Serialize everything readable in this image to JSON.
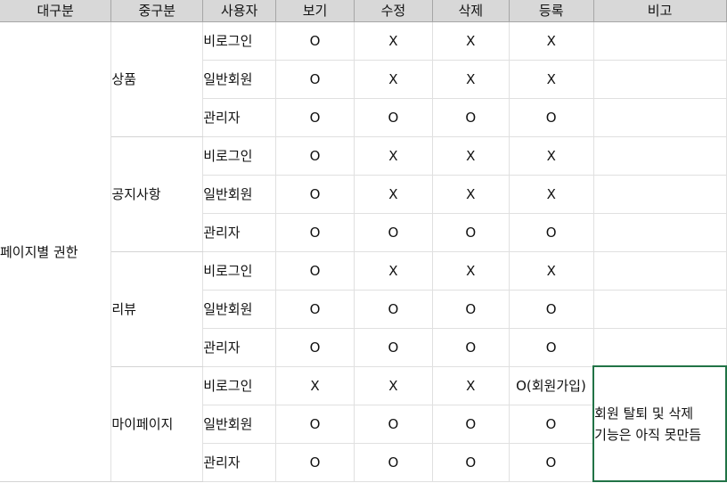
{
  "headers": [
    "대구분",
    "중구분",
    "사용자",
    "보기",
    "수정",
    "삭제",
    "등록",
    "비고"
  ],
  "major_category": "페이지별 권한",
  "groups": [
    {
      "name": "상품",
      "rows": [
        {
          "user": "비로그인",
          "view": "O",
          "edit": "X",
          "delete": "X",
          "register": "X"
        },
        {
          "user": "일반회원",
          "view": "O",
          "edit": "X",
          "delete": "X",
          "register": "X"
        },
        {
          "user": "관리자",
          "view": "O",
          "edit": "O",
          "delete": "O",
          "register": "O"
        }
      ]
    },
    {
      "name": "공지사항",
      "rows": [
        {
          "user": "비로그인",
          "view": "O",
          "edit": "X",
          "delete": "X",
          "register": "X"
        },
        {
          "user": "일반회원",
          "view": "O",
          "edit": "X",
          "delete": "X",
          "register": "X"
        },
        {
          "user": "관리자",
          "view": "O",
          "edit": "O",
          "delete": "O",
          "register": "O"
        }
      ]
    },
    {
      "name": "리뷰",
      "rows": [
        {
          "user": "비로그인",
          "view": "O",
          "edit": "X",
          "delete": "X",
          "register": "X"
        },
        {
          "user": "일반회원",
          "view": "O",
          "edit": "O",
          "delete": "O",
          "register": "O"
        },
        {
          "user": "관리자",
          "view": "O",
          "edit": "O",
          "delete": "O",
          "register": "O"
        }
      ]
    },
    {
      "name": "마이페이지",
      "rows": [
        {
          "user": "비로그인",
          "view": "X",
          "edit": "X",
          "delete": "X",
          "register": "O(회원가입)"
        },
        {
          "user": "일반회원",
          "view": "O",
          "edit": "O",
          "delete": "O",
          "register": "O"
        },
        {
          "user": "관리자",
          "view": "O",
          "edit": "O",
          "delete": "O",
          "register": "O"
        }
      ]
    }
  ],
  "note": {
    "line1": "회원 탈퇴 및 삭제",
    "line2": "기능은 아직 못만듬"
  },
  "colors": {
    "header_bg": "#d8d8d8",
    "selected_border": "#217346",
    "grid_line": "#e0e0e0"
  }
}
